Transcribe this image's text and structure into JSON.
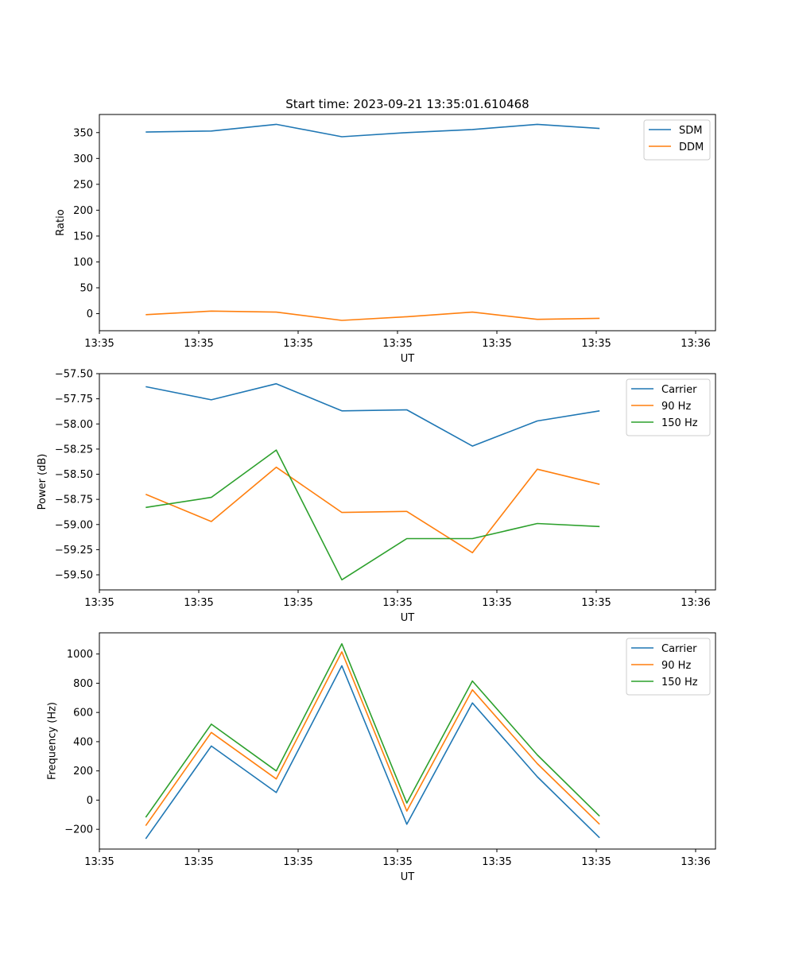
{
  "figure": {
    "title": "Start time: 2023-09-21 13:35:01.610468"
  },
  "chart_data": [
    {
      "type": "line",
      "xlabel": "UT",
      "ylabel": "Ratio",
      "x_tick_labels": [
        "13:35",
        "13:35",
        "13:35",
        "13:35",
        "13:35",
        "13:35",
        "13:36"
      ],
      "xlim": [
        0,
        9.3
      ],
      "x_ticks": [
        0,
        1.5,
        3,
        4.5,
        6,
        7.5,
        9
      ],
      "x": [
        0.7,
        1.69,
        2.67,
        3.66,
        4.64,
        5.63,
        6.61,
        7.55
      ],
      "ylim": [
        -33,
        385
      ],
      "y_ticks": [
        0,
        50,
        100,
        150,
        200,
        250,
        300,
        350
      ],
      "y_tick_labels": [
        "0",
        "50",
        "100",
        "150",
        "200",
        "250",
        "300",
        "350"
      ],
      "legend_position": "top-right",
      "series": [
        {
          "name": "SDM",
          "color": "#1f77b4",
          "values": [
            351,
            353,
            366,
            342,
            350,
            356,
            366,
            358
          ]
        },
        {
          "name": "DDM",
          "color": "#ff7f0e",
          "values": [
            -2,
            5,
            3,
            -13,
            -6,
            3,
            -11,
            -9
          ]
        }
      ]
    },
    {
      "type": "line",
      "xlabel": "UT",
      "ylabel": "Power (dB)",
      "x_tick_labels": [
        "13:35",
        "13:35",
        "13:35",
        "13:35",
        "13:35",
        "13:35",
        "13:36"
      ],
      "xlim": [
        0,
        9.3
      ],
      "x_ticks": [
        0,
        1.5,
        3,
        4.5,
        6,
        7.5,
        9
      ],
      "x": [
        0.7,
        1.69,
        2.67,
        3.66,
        4.64,
        5.63,
        6.61,
        7.55
      ],
      "ylim": [
        -59.65,
        -57.5
      ],
      "y_ticks": [
        -57.5,
        -57.75,
        -58.0,
        -58.25,
        -58.5,
        -58.75,
        -59.0,
        -59.25,
        -59.5
      ],
      "y_tick_labels": [
        "−57.50",
        "−57.75",
        "−58.00",
        "−58.25",
        "−58.50",
        "−58.75",
        "−59.00",
        "−59.25",
        "−59.50"
      ],
      "legend_position": "top-right",
      "series": [
        {
          "name": "Carrier",
          "color": "#1f77b4",
          "values": [
            -57.63,
            -57.76,
            -57.6,
            -57.87,
            -57.86,
            -58.22,
            -57.97,
            -57.87
          ]
        },
        {
          "name": "90 Hz",
          "color": "#ff7f0e",
          "values": [
            -58.7,
            -58.97,
            -58.43,
            -58.88,
            -58.87,
            -59.28,
            -58.45,
            -58.6
          ]
        },
        {
          "name": "150 Hz",
          "color": "#2ca02c",
          "values": [
            -58.83,
            -58.73,
            -58.26,
            -59.55,
            -59.14,
            -59.14,
            -58.99,
            -59.02
          ]
        }
      ]
    },
    {
      "type": "line",
      "xlabel": "UT",
      "ylabel": "Frequency (Hz)",
      "x_tick_labels": [
        "13:35",
        "13:35",
        "13:35",
        "13:35",
        "13:35",
        "13:35",
        "13:36"
      ],
      "xlim": [
        0,
        9.3
      ],
      "x_ticks": [
        0,
        1.5,
        3,
        4.5,
        6,
        7.5,
        9
      ],
      "x": [
        0.7,
        1.69,
        2.67,
        3.66,
        4.64,
        5.63,
        6.61,
        7.55
      ],
      "ylim": [
        -335,
        1145
      ],
      "y_ticks": [
        -200,
        0,
        200,
        400,
        600,
        800,
        1000
      ],
      "y_tick_labels": [
        "−200",
        "0",
        "200",
        "400",
        "600",
        "800",
        "1000"
      ],
      "legend_position": "top-right",
      "series": [
        {
          "name": "Carrier",
          "color": "#1f77b4",
          "values": [
            -265,
            370,
            52,
            920,
            -165,
            665,
            160,
            -258
          ]
        },
        {
          "name": "90 Hz",
          "color": "#ff7f0e",
          "values": [
            -175,
            463,
            145,
            1015,
            -75,
            755,
            250,
            -165
          ]
        },
        {
          "name": "150 Hz",
          "color": "#2ca02c",
          "values": [
            -118,
            520,
            200,
            1070,
            -20,
            815,
            310,
            -110
          ]
        }
      ]
    }
  ]
}
